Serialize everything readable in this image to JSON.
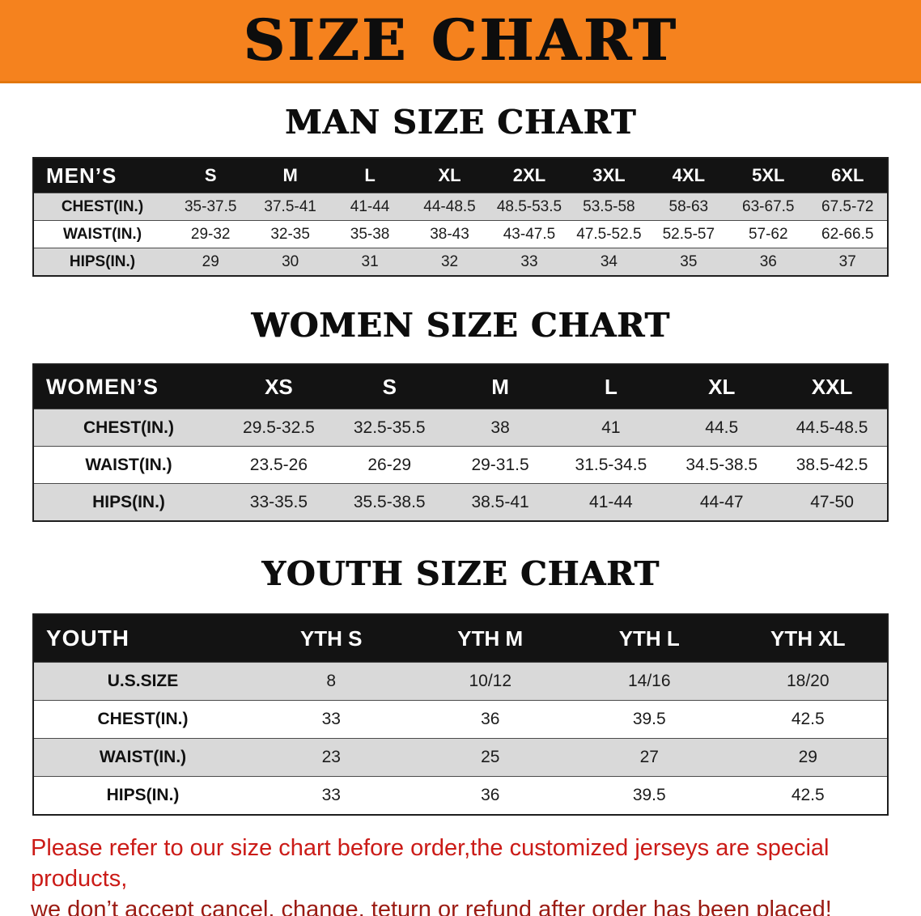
{
  "banner": {
    "title": "SIZE CHART"
  },
  "sections": [
    {
      "heading": "MAN SIZE CHART",
      "table": {
        "header": [
          "MEN’S",
          "S",
          "M",
          "L",
          "XL",
          "2XL",
          "3XL",
          "4XL",
          "5XL",
          "6XL"
        ],
        "rows": [
          [
            "CHEST(IN.)",
            "35-37.5",
            "37.5-41",
            "41-44",
            "44-48.5",
            "48.5-53.5",
            "53.5-58",
            "58-63",
            "63-67.5",
            "67.5-72"
          ],
          [
            "WAIST(IN.)",
            "29-32",
            "32-35",
            "35-38",
            "38-43",
            "43-47.5",
            "47.5-52.5",
            "52.5-57",
            "57-62",
            "62-66.5"
          ],
          [
            "HIPS(IN.)",
            "29",
            "30",
            "31",
            "32",
            "33",
            "34",
            "35",
            "36",
            "37"
          ]
        ]
      }
    },
    {
      "heading": "WOMEN SIZE CHART",
      "table": {
        "header": [
          "WOMEN’S",
          "XS",
          "S",
          "M",
          "L",
          "XL",
          "XXL"
        ],
        "rows": [
          [
            "CHEST(IN.)",
            "29.5-32.5",
            "32.5-35.5",
            "38",
            "41",
            "44.5",
            "44.5-48.5"
          ],
          [
            "WAIST(IN.)",
            "23.5-26",
            "26-29",
            "29-31.5",
            "31.5-34.5",
            "34.5-38.5",
            "38.5-42.5"
          ],
          [
            "HIPS(IN.)",
            "33-35.5",
            "35.5-38.5",
            "38.5-41",
            "41-44",
            "44-47",
            "47-50"
          ]
        ]
      }
    },
    {
      "heading": "YOUTH SIZE CHART",
      "table": {
        "header": [
          "YOUTH",
          "YTH S",
          "YTH M",
          "YTH L",
          "YTH XL"
        ],
        "rows": [
          [
            "U.S.SIZE",
            "8",
            "10/12",
            "14/16",
            "18/20"
          ],
          [
            "CHEST(IN.)",
            "33",
            "36",
            "39.5",
            "42.5"
          ],
          [
            "WAIST(IN.)",
            "23",
            "25",
            "27",
            "29"
          ],
          [
            "HIPS(IN.)",
            "33",
            "36",
            "39.5",
            "42.5"
          ]
        ]
      }
    }
  ],
  "disclaimer": {
    "line1": "Please refer to our size chart before order,the customized jerseys are special products,",
    "line2": "we don’t accept cancel, change, teturn or refund after order has been placed!"
  },
  "colors": {
    "banner_bg": "#F5821E",
    "table_header_bg": "#131313",
    "row_stripe": "#D9D9D9",
    "disclaimer_red_top": "#CB1B17",
    "disclaimer_red_bottom": "#9B1B13"
  }
}
